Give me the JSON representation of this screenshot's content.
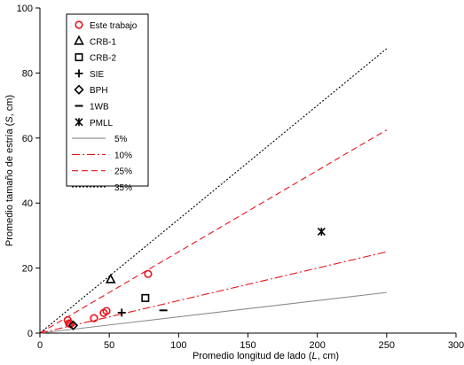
{
  "chart_data": {
    "type": "scatter",
    "xlabel": "Promedio longitud de lado (L, cm)",
    "xlabel_parts": [
      "Promedio longitud de lado (",
      "L",
      ", cm)"
    ],
    "ylabel": "Promedio tamaño de estría (S, cm)",
    "ylabel_parts": [
      "Promedio tamaño de estría (",
      "S",
      ", cm)"
    ],
    "xlim": [
      0,
      300
    ],
    "ylim": [
      0,
      100
    ],
    "xticks": [
      0,
      50,
      100,
      150,
      200,
      250,
      300
    ],
    "yticks": [
      0,
      20,
      40,
      60,
      80,
      100
    ],
    "grid": false,
    "legend_position": "top-left",
    "series": [
      {
        "name": "Este trabajo",
        "marker": "circle",
        "color": "#e8141b",
        "points": [
          {
            "x": 20,
            "y": 4.0
          },
          {
            "x": 21,
            "y": 3.0
          },
          {
            "x": 22,
            "y": 2.8
          },
          {
            "x": 39,
            "y": 4.6
          },
          {
            "x": 46,
            "y": 6.2
          },
          {
            "x": 48,
            "y": 6.8
          },
          {
            "x": 78,
            "y": 18.2
          }
        ]
      },
      {
        "name": "CRB-1",
        "marker": "triangle",
        "color": "#000000",
        "points": [
          {
            "x": 51,
            "y": 16.5
          }
        ]
      },
      {
        "name": "CRB-2",
        "marker": "square",
        "color": "#000000",
        "points": [
          {
            "x": 76,
            "y": 10.8
          }
        ]
      },
      {
        "name": "SIE",
        "marker": "plus",
        "color": "#000000",
        "points": [
          {
            "x": 59,
            "y": 6.3
          }
        ]
      },
      {
        "name": "BPH",
        "marker": "diamond",
        "color": "#000000",
        "points": [
          {
            "x": 24,
            "y": 2.4
          }
        ]
      },
      {
        "name": "1WB",
        "marker": "dash",
        "color": "#000000",
        "points": [
          {
            "x": 89,
            "y": 7.0
          }
        ]
      },
      {
        "name": "PMLL",
        "marker": "asterisk",
        "color": "#000000",
        "points": [
          {
            "x": 203,
            "y": 31.2
          }
        ]
      }
    ],
    "reference_lines": [
      {
        "name": "5%",
        "slope": 0.05,
        "x_range": [
          0,
          250
        ],
        "color": "#8a8a8a",
        "dash": "solid"
      },
      {
        "name": "10%",
        "slope": 0.1,
        "x_range": [
          0,
          250
        ],
        "color": "#e8141b",
        "dash": "dashdot"
      },
      {
        "name": "25%",
        "slope": 0.25,
        "x_range": [
          0,
          250
        ],
        "color": "#e8141b",
        "dash": "dash"
      },
      {
        "name": "35%",
        "slope": 0.35,
        "x_range": [
          0,
          250
        ],
        "color": "#000000",
        "dash": "dot"
      }
    ]
  }
}
